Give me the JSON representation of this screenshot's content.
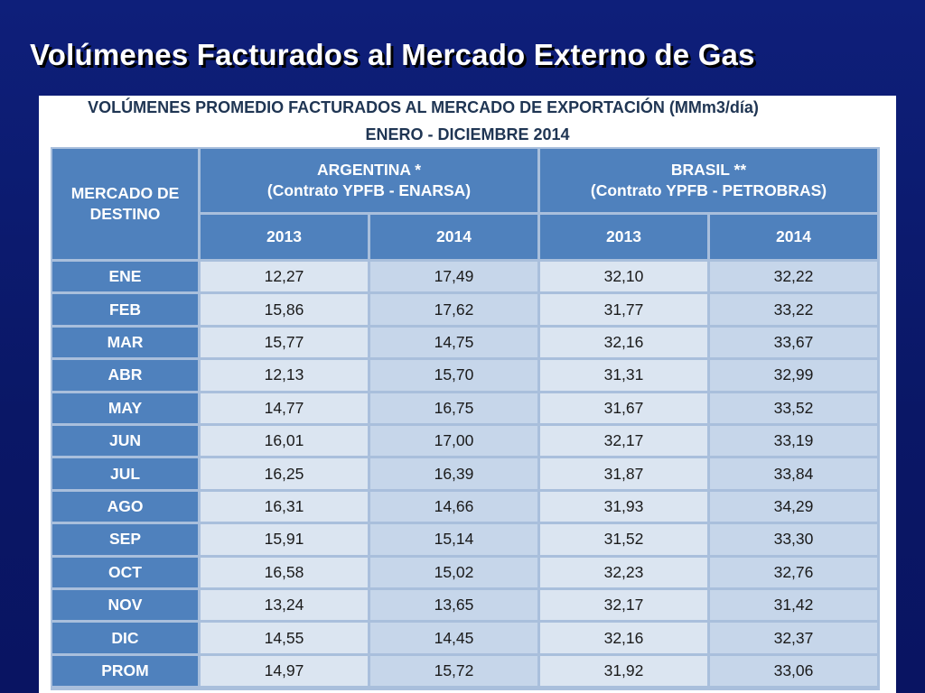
{
  "slide_title": "Volúmenes Facturados al Mercado Externo de Gas",
  "table_title_line1": "VOLÚMENES PROMEDIO FACTURADOS AL MERCADO DE EXPORTACIÓN (MMm3/día)",
  "table_title_line2": "ENERO - DICIEMBRE 2014",
  "header": {
    "destino_line1": "MERCADO DE",
    "destino_line2": "DESTINO",
    "argentina_line1": "ARGENTINA *",
    "argentina_line2": "(Contrato YPFB - ENARSA)",
    "brasil_line1": "BRASIL **",
    "brasil_line2": "(Contrato YPFB - PETROBRAS)",
    "years": [
      "2013",
      "2014",
      "2013",
      "2014"
    ]
  },
  "rows": [
    {
      "month": "ENE",
      "values": [
        "12,27",
        "17,49",
        "32,10",
        "32,22"
      ]
    },
    {
      "month": "FEB",
      "values": [
        "15,86",
        "17,62",
        "31,77",
        "33,22"
      ]
    },
    {
      "month": "MAR",
      "values": [
        "15,77",
        "14,75",
        "32,16",
        "33,67"
      ]
    },
    {
      "month": "ABR",
      "values": [
        "12,13",
        "15,70",
        "31,31",
        "32,99"
      ]
    },
    {
      "month": "MAY",
      "values": [
        "14,77",
        "16,75",
        "31,67",
        "33,52"
      ]
    },
    {
      "month": "JUN",
      "values": [
        "16,01",
        "17,00",
        "32,17",
        "33,19"
      ]
    },
    {
      "month": "JUL",
      "values": [
        "16,25",
        "16,39",
        "31,87",
        "33,84"
      ]
    },
    {
      "month": "AGO",
      "values": [
        "16,31",
        "14,66",
        "31,93",
        "34,29"
      ]
    },
    {
      "month": "SEP",
      "values": [
        "15,91",
        "15,14",
        "31,52",
        "33,30"
      ]
    },
    {
      "month": "OCT",
      "values": [
        "16,58",
        "15,02",
        "32,23",
        "32,76"
      ]
    },
    {
      "month": "NOV",
      "values": [
        "13,24",
        "13,65",
        "32,17",
        "31,42"
      ]
    },
    {
      "month": "DIC",
      "values": [
        "14,55",
        "14,45",
        "32,16",
        "32,37"
      ]
    },
    {
      "month": "PROM",
      "values": [
        "14,97",
        "15,72",
        "31,92",
        "33,06"
      ]
    }
  ]
}
